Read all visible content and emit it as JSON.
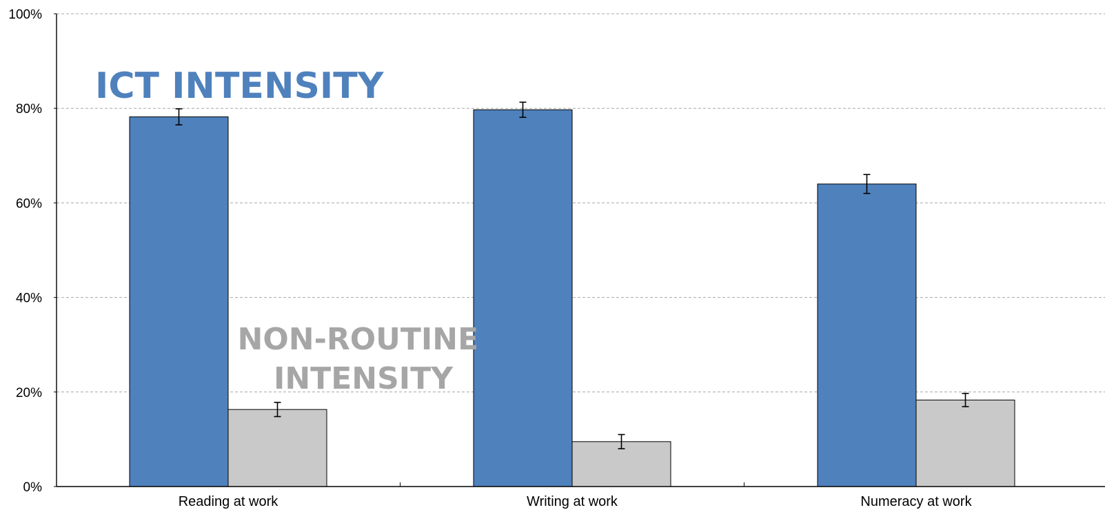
{
  "chart_data": {
    "type": "bar",
    "title": "",
    "xlabel": "",
    "ylabel": "",
    "categories": [
      "Reading at work",
      "Writing at work",
      "Numeracy at work"
    ],
    "series": [
      {
        "values": [
          78.2,
          79.7,
          64.0
        ],
        "error": [
          1.7,
          1.6,
          2.0
        ],
        "color": "#4f81bd"
      },
      {
        "values": [
          16.3,
          9.5,
          18.3
        ],
        "error": [
          1.5,
          1.5,
          1.4
        ],
        "color": "#c9c9c9"
      }
    ],
    "ylim": [
      0,
      100
    ],
    "yticks": [
      0,
      20,
      40,
      60,
      80,
      100
    ],
    "ytick_labels": [
      "0%",
      "20%",
      "40%",
      "60%",
      "80%",
      "100%"
    ],
    "grid": true,
    "legend": "none",
    "annotations": [
      {
        "lines": [
          "ICT INTENSITY"
        ],
        "color": "#4f81bd"
      },
      {
        "lines": [
          "NON-ROUTINE",
          "INTENSITY"
        ],
        "color": "#a6a6a6"
      }
    ]
  }
}
